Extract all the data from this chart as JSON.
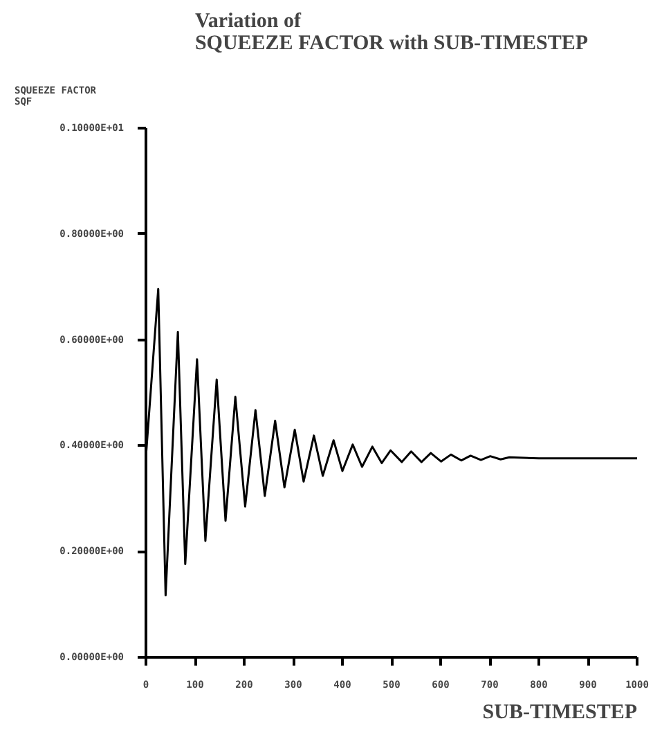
{
  "chart_data": {
    "type": "line",
    "title": "Variation of\nSQUEEZE FACTOR with SUB-TIMESTEP",
    "ylabel": "SQUEEZE FACTOR\nSQF",
    "xlabel": "SUB-TIMESTEP",
    "x": [
      0,
      25,
      40,
      65,
      80,
      104,
      121,
      144,
      162,
      182,
      202,
      223,
      242,
      263,
      282,
      303,
      321,
      342,
      360,
      382,
      400,
      421,
      440,
      461,
      480,
      498,
      521,
      540,
      561,
      580,
      601,
      621,
      642,
      661,
      682,
      701,
      722,
      740,
      800,
      850,
      900,
      950,
      1000
    ],
    "series": [
      {
        "color": "#000000",
        "values": [
          0.38,
          0.696,
          0.117,
          0.615,
          0.176,
          0.563,
          0.22,
          0.525,
          0.258,
          0.492,
          0.285,
          0.467,
          0.305,
          0.447,
          0.321,
          0.43,
          0.332,
          0.419,
          0.343,
          0.41,
          0.352,
          0.402,
          0.36,
          0.398,
          0.367,
          0.391,
          0.369,
          0.389,
          0.369,
          0.386,
          0.37,
          0.383,
          0.372,
          0.381,
          0.373,
          0.38,
          0.374,
          0.378,
          0.376,
          0.376,
          0.376,
          0.376,
          0.376
        ]
      }
    ],
    "xlim": [
      0,
      1000
    ],
    "xticks": [
      0,
      100,
      200,
      300,
      400,
      500,
      600,
      700,
      800,
      900,
      1000
    ],
    "ylim": [
      0,
      1
    ],
    "yticks": [
      {
        "value": 0,
        "label": "0.00000E+00"
      },
      {
        "value": 0.2,
        "label": "0.20000E+00"
      },
      {
        "value": 0.4,
        "label": "0.40000E+00"
      },
      {
        "value": 0.6,
        "label": "0.60000E+00"
      },
      {
        "value": 0.8,
        "label": "0.80000E+00"
      },
      {
        "value": 1,
        "label": "0.10000E+01"
      }
    ],
    "grid": false,
    "marker": "none",
    "line_style": "solid"
  }
}
